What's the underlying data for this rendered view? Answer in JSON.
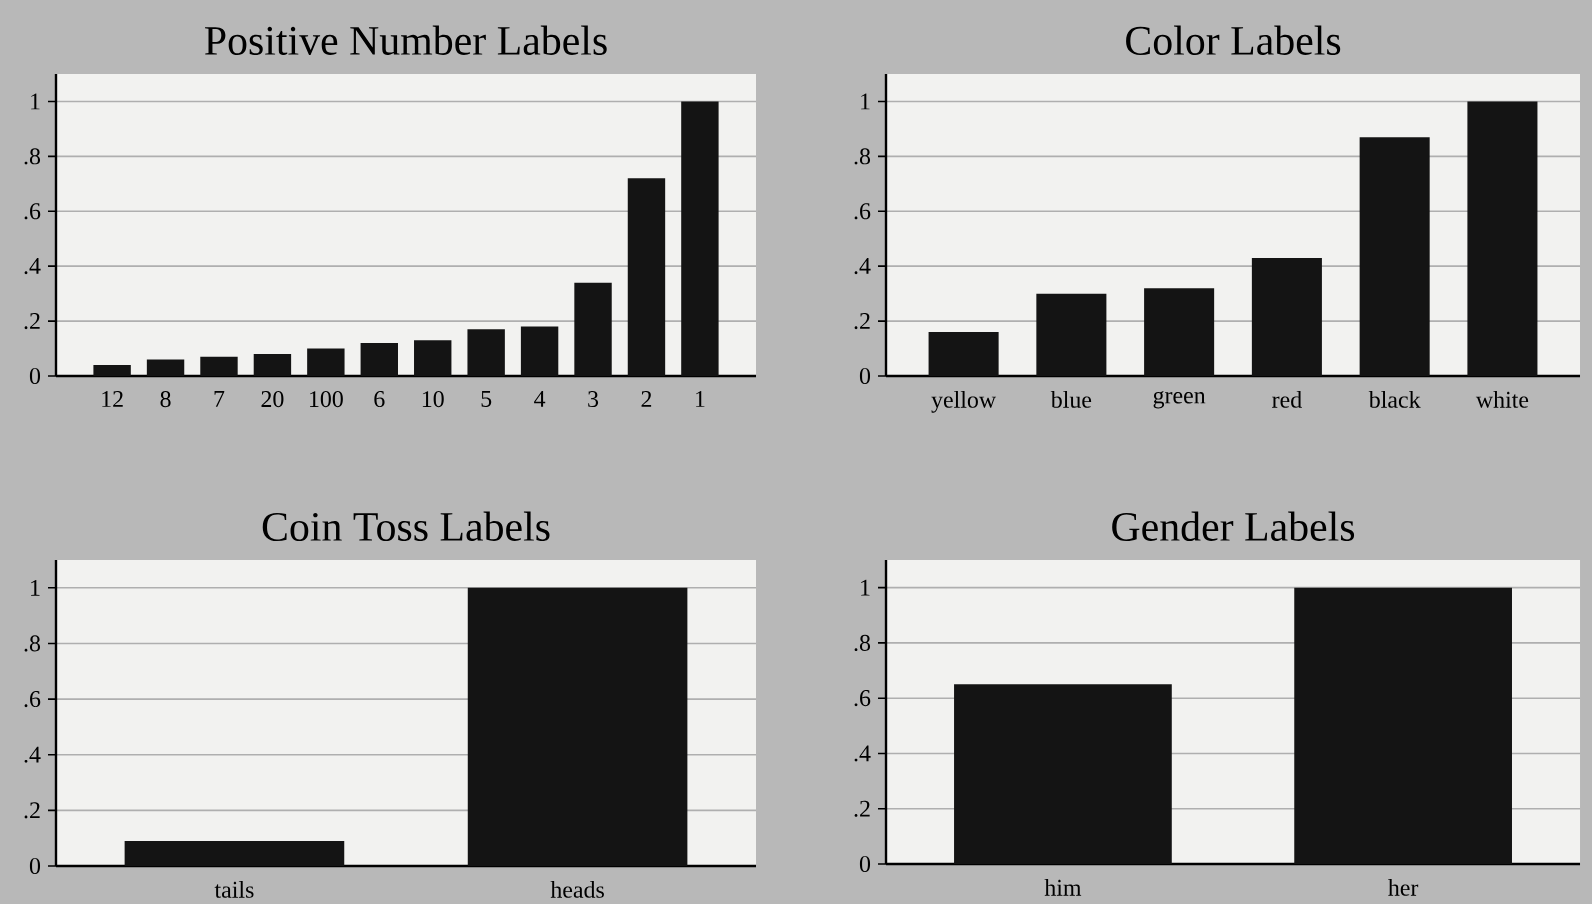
{
  "chart_data": [
    {
      "type": "bar",
      "title": "Positive Number Labels",
      "categories": [
        "12",
        "8",
        "7",
        "20",
        "100",
        "6",
        "10",
        "5",
        "4",
        "3",
        "2",
        "1"
      ],
      "values": [
        0.04,
        0.06,
        0.07,
        0.08,
        0.1,
        0.12,
        0.13,
        0.17,
        0.18,
        0.34,
        0.72,
        1.0
      ],
      "color": "#141414",
      "ylim": [
        0,
        1.1
      ],
      "yticks": [
        0,
        {
          "value": 0.2,
          "label": ".2"
        },
        {
          "value": 0.4,
          "label": ".4"
        },
        {
          "value": 0.6,
          "label": ".6"
        },
        {
          "value": 0.8,
          "label": ".8"
        },
        1
      ],
      "grid": "y"
    },
    {
      "type": "bar",
      "title": "Color Labels",
      "categories": [
        "yellow",
        "blue",
        "green",
        "red",
        "black",
        "white"
      ],
      "values": [
        0.16,
        0.3,
        0.32,
        0.43,
        0.87,
        1.0
      ],
      "color": "#141414",
      "ylim": [
        0,
        1.1
      ],
      "yticks": [
        0,
        {
          "value": 0.2,
          "label": ".2"
        },
        {
          "value": 0.4,
          "label": ".4"
        },
        {
          "value": 0.6,
          "label": ".6"
        },
        {
          "value": 0.8,
          "label": ".8"
        },
        1
      ],
      "grid": "y"
    },
    {
      "type": "bar",
      "title": "Coin Toss Labels",
      "categories": [
        "tails",
        "heads"
      ],
      "values": [
        0.09,
        1.0
      ],
      "color": "#141414",
      "ylim": [
        0,
        1.1
      ],
      "yticks": [
        0,
        {
          "value": 0.2,
          "label": ".2"
        },
        {
          "value": 0.4,
          "label": ".4"
        },
        {
          "value": 0.6,
          "label": ".6"
        },
        {
          "value": 0.8,
          "label": ".8"
        },
        1
      ],
      "grid": "y"
    },
    {
      "type": "bar",
      "title": "Gender Labels",
      "categories": [
        "him",
        "her"
      ],
      "values": [
        0.65,
        1.0
      ],
      "color": "#141414",
      "ylim": [
        0,
        1.1
      ],
      "yticks": [
        0,
        {
          "value": 0.2,
          "label": ".2"
        },
        {
          "value": 0.4,
          "label": ".4"
        },
        {
          "value": 0.6,
          "label": ".6"
        },
        {
          "value": 0.8,
          "label": ".8"
        },
        1
      ],
      "grid": "y"
    }
  ]
}
